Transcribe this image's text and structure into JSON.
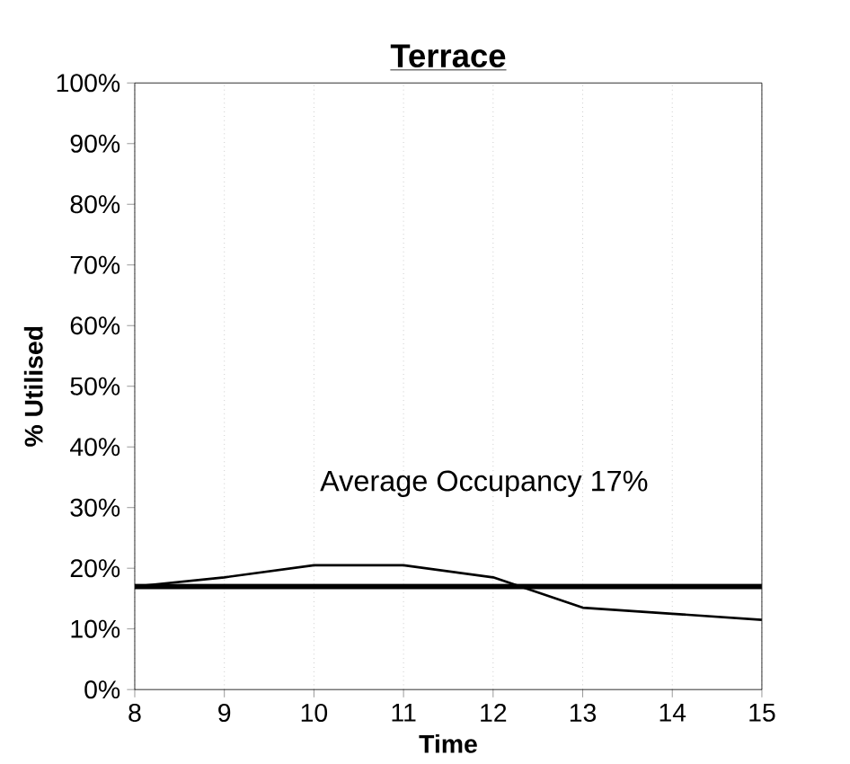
{
  "chart_data": {
    "type": "line",
    "title": "Terrace",
    "xlabel": "Time",
    "ylabel": "% Utilised",
    "x": [
      8,
      9,
      10,
      11,
      12,
      13,
      14,
      15
    ],
    "series": [
      {
        "color": "#000000",
        "values": [
          17,
          18.5,
          20.5,
          20.5,
          18.5,
          13.5,
          12.5,
          11.5
        ]
      }
    ],
    "xlim": [
      8,
      15
    ],
    "xticks": [
      8,
      9,
      10,
      11,
      12,
      13,
      14,
      15
    ],
    "ylim": [
      0,
      100
    ],
    "yticks": [
      {
        "value": 0,
        "label": "0%"
      },
      {
        "value": 10,
        "label": "10%"
      },
      {
        "value": 20,
        "label": "20%"
      },
      {
        "value": 30,
        "label": "30%"
      },
      {
        "value": 40,
        "label": "40%"
      },
      {
        "value": 50,
        "label": "50%"
      },
      {
        "value": 60,
        "label": "60%"
      },
      {
        "value": 70,
        "label": "70%"
      },
      {
        "value": 80,
        "label": "80%"
      },
      {
        "value": 90,
        "label": "90%"
      },
      {
        "value": 100,
        "label": "100%"
      }
    ],
    "ref_lines": [
      {
        "axis": "y",
        "value": 17,
        "label": "Average Occupancy 17%",
        "color": "#000000"
      }
    ],
    "grid": "x",
    "marker": "none",
    "line_style": "solid"
  }
}
